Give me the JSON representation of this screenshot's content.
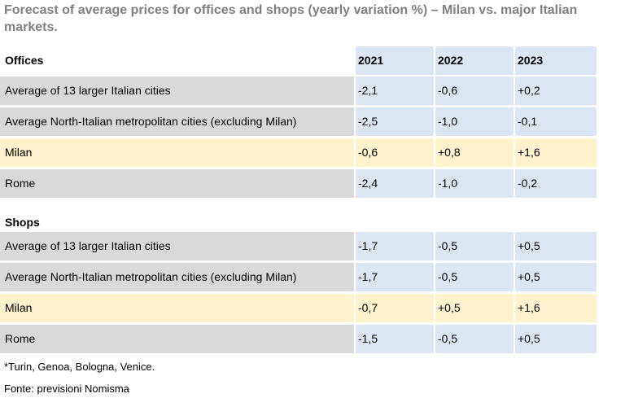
{
  "title": "Forecast of average prices for offices and shops (yearly variation %) – Milan vs. major Italian markets.",
  "chart_data": {
    "type": "table",
    "columns": [
      "2021",
      "2022",
      "2023"
    ],
    "sections": [
      {
        "name": "Offices",
        "rows": [
          {
            "label": "Average of 13 larger Italian cities",
            "values": [
              "-2,1",
              "-0,6",
              "+0,2"
            ]
          },
          {
            "label": "Average North-Italian metropolitan cities (excluding Milan)",
            "values": [
              "-2,5",
              "-1,0",
              "-0,1"
            ]
          },
          {
            "label": "Milan",
            "values": [
              "-0,6",
              "+0,8",
              "+1,6"
            ]
          },
          {
            "label": "Rome",
            "values": [
              "-2,4",
              "-1,0",
              "-0,2"
            ]
          }
        ]
      },
      {
        "name": "Shops",
        "rows": [
          {
            "label": "Average of 13 larger Italian cities",
            "values": [
              "-1,7",
              "-0,5",
              "+0,5"
            ]
          },
          {
            "label": "Average North-Italian metropolitan cities (excluding Milan)",
            "values": [
              "-1,7",
              "-0,5",
              "+0,5"
            ]
          },
          {
            "label": "Milan",
            "values": [
              "-0,7",
              "+0,5",
              "+1,6"
            ]
          },
          {
            "label": "Rome",
            "values": [
              "-1,5",
              "-0,5",
              "+0,5"
            ]
          }
        ]
      }
    ]
  },
  "colors": {
    "label_bg": "#d9d9d9",
    "value_bg": "#dce6f2",
    "milan_bg": "#fff2cc",
    "title_text": "#808080"
  },
  "footnote": "*Turin, Genoa, Bologna, Venice.",
  "source": "Fonte: previsioni Nomisma"
}
